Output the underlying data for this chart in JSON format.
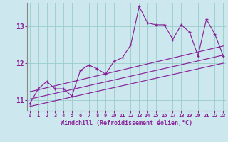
{
  "xlabel": "Windchill (Refroidissement éolien,°C)",
  "bg_color": "#cce8ee",
  "grid_color": "#99cccc",
  "line_color": "#882299",
  "spine_color": "#888888",
  "hours": [
    0,
    1,
    2,
    3,
    4,
    5,
    6,
    7,
    8,
    9,
    10,
    11,
    12,
    13,
    14,
    15,
    16,
    17,
    18,
    19,
    20,
    21,
    22,
    23
  ],
  "temp_data": [
    10.9,
    11.3,
    11.5,
    11.3,
    11.3,
    11.1,
    11.8,
    11.95,
    11.85,
    11.7,
    12.05,
    12.15,
    12.5,
    13.55,
    13.1,
    13.05,
    13.05,
    12.65,
    13.05,
    12.85,
    12.2,
    13.2,
    12.8,
    12.2
  ],
  "ylim": [
    10.7,
    13.65
  ],
  "yticks": [
    11,
    12,
    13
  ],
  "xticks": [
    0,
    1,
    2,
    3,
    4,
    5,
    6,
    7,
    8,
    9,
    10,
    11,
    12,
    13,
    14,
    15,
    16,
    17,
    18,
    19,
    20,
    21,
    22,
    23
  ],
  "reg_line_y": [
    11.02,
    12.22
  ],
  "upper_line_y": [
    11.22,
    12.47
  ],
  "lower_line_y": [
    10.82,
    12.0
  ]
}
